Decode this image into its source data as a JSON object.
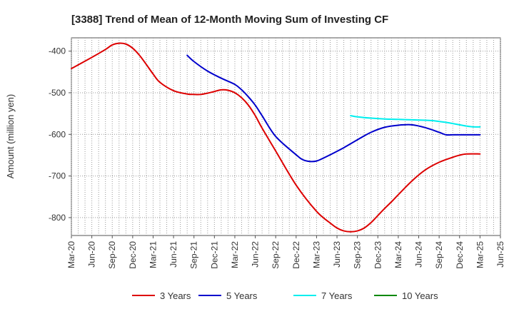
{
  "chart_data": {
    "type": "line",
    "title": "[3388]  Trend of Mean of 12-Month Moving Sum of Investing CF",
    "xlabel": "",
    "ylabel": "Amount (million yen)",
    "ylim": [
      -843,
      -368
    ],
    "yticks": [
      -800,
      -700,
      -600,
      -500,
      -400
    ],
    "ytick_labels": [
      "-800",
      "-700",
      "-600",
      "-500",
      "-400"
    ],
    "x_range": [
      0,
      63
    ],
    "xticks": [
      0,
      3,
      6,
      9,
      12,
      15,
      18,
      21,
      24,
      27,
      30,
      33,
      36,
      39,
      42,
      45,
      48,
      51,
      54,
      57,
      60,
      63
    ],
    "xtick_labels": [
      "Mar-20",
      "Jun-20",
      "Sep-20",
      "Dec-20",
      "Mar-21",
      "Jun-21",
      "Sep-21",
      "Dec-21",
      "Mar-22",
      "Jun-22",
      "Sep-22",
      "Dec-22",
      "Mar-23",
      "Jun-23",
      "Sep-23",
      "Dec-23",
      "Mar-24",
      "Jun-24",
      "Sep-24",
      "Dec-24",
      "Mar-25",
      "Jun-25"
    ],
    "grid": true,
    "legend_position": "bottom",
    "series": [
      {
        "name": "3 Years",
        "color": "#dd0000",
        "x": [
          0,
          3,
          5,
          6,
          7,
          8,
          9,
          10,
          11,
          12,
          13,
          15,
          17,
          18,
          19,
          20,
          21,
          22,
          23,
          24,
          25,
          26,
          27,
          28,
          30,
          33,
          36,
          38,
          39,
          40,
          41,
          42,
          43,
          44,
          45,
          46,
          47,
          48,
          50,
          52,
          54,
          56,
          57,
          58,
          60
        ],
        "values": [
          -442,
          -415,
          -396,
          -385,
          -381,
          -383,
          -393,
          -410,
          -432,
          -455,
          -475,
          -495,
          -503,
          -504,
          -504,
          -501,
          -497,
          -493,
          -494,
          -500,
          -512,
          -530,
          -555,
          -585,
          -640,
          -722,
          -785,
          -813,
          -825,
          -832,
          -834,
          -832,
          -825,
          -812,
          -795,
          -778,
          -762,
          -745,
          -712,
          -685,
          -667,
          -655,
          -650,
          -647,
          -647
        ]
      },
      {
        "name": "5 Years",
        "color": "#0000cc",
        "x": [
          17,
          18,
          20,
          22,
          24,
          25,
          26,
          27,
          28,
          30,
          33,
          34,
          35,
          36,
          37,
          38,
          40,
          42,
          44,
          46,
          48,
          50,
          52,
          54,
          55,
          56,
          57,
          58,
          60
        ],
        "values": [
          -410,
          -425,
          -448,
          -465,
          -480,
          -493,
          -510,
          -530,
          -555,
          -605,
          -649,
          -661,
          -665,
          -664,
          -657,
          -649,
          -632,
          -613,
          -595,
          -583,
          -578,
          -577,
          -584,
          -595,
          -601,
          -601,
          -601,
          -601,
          -601
        ]
      },
      {
        "name": "7 Years",
        "color": "#00eeee",
        "x": [
          41,
          42,
          44,
          46,
          48,
          50,
          52,
          53,
          54,
          55,
          56,
          57,
          58,
          59,
          60
        ],
        "values": [
          -555,
          -558,
          -561,
          -563,
          -564,
          -565,
          -566,
          -567,
          -569,
          -571,
          -574,
          -577,
          -580,
          -582,
          -582
        ]
      },
      {
        "name": "10 Years",
        "color": "#008800",
        "x": [],
        "values": []
      }
    ]
  }
}
